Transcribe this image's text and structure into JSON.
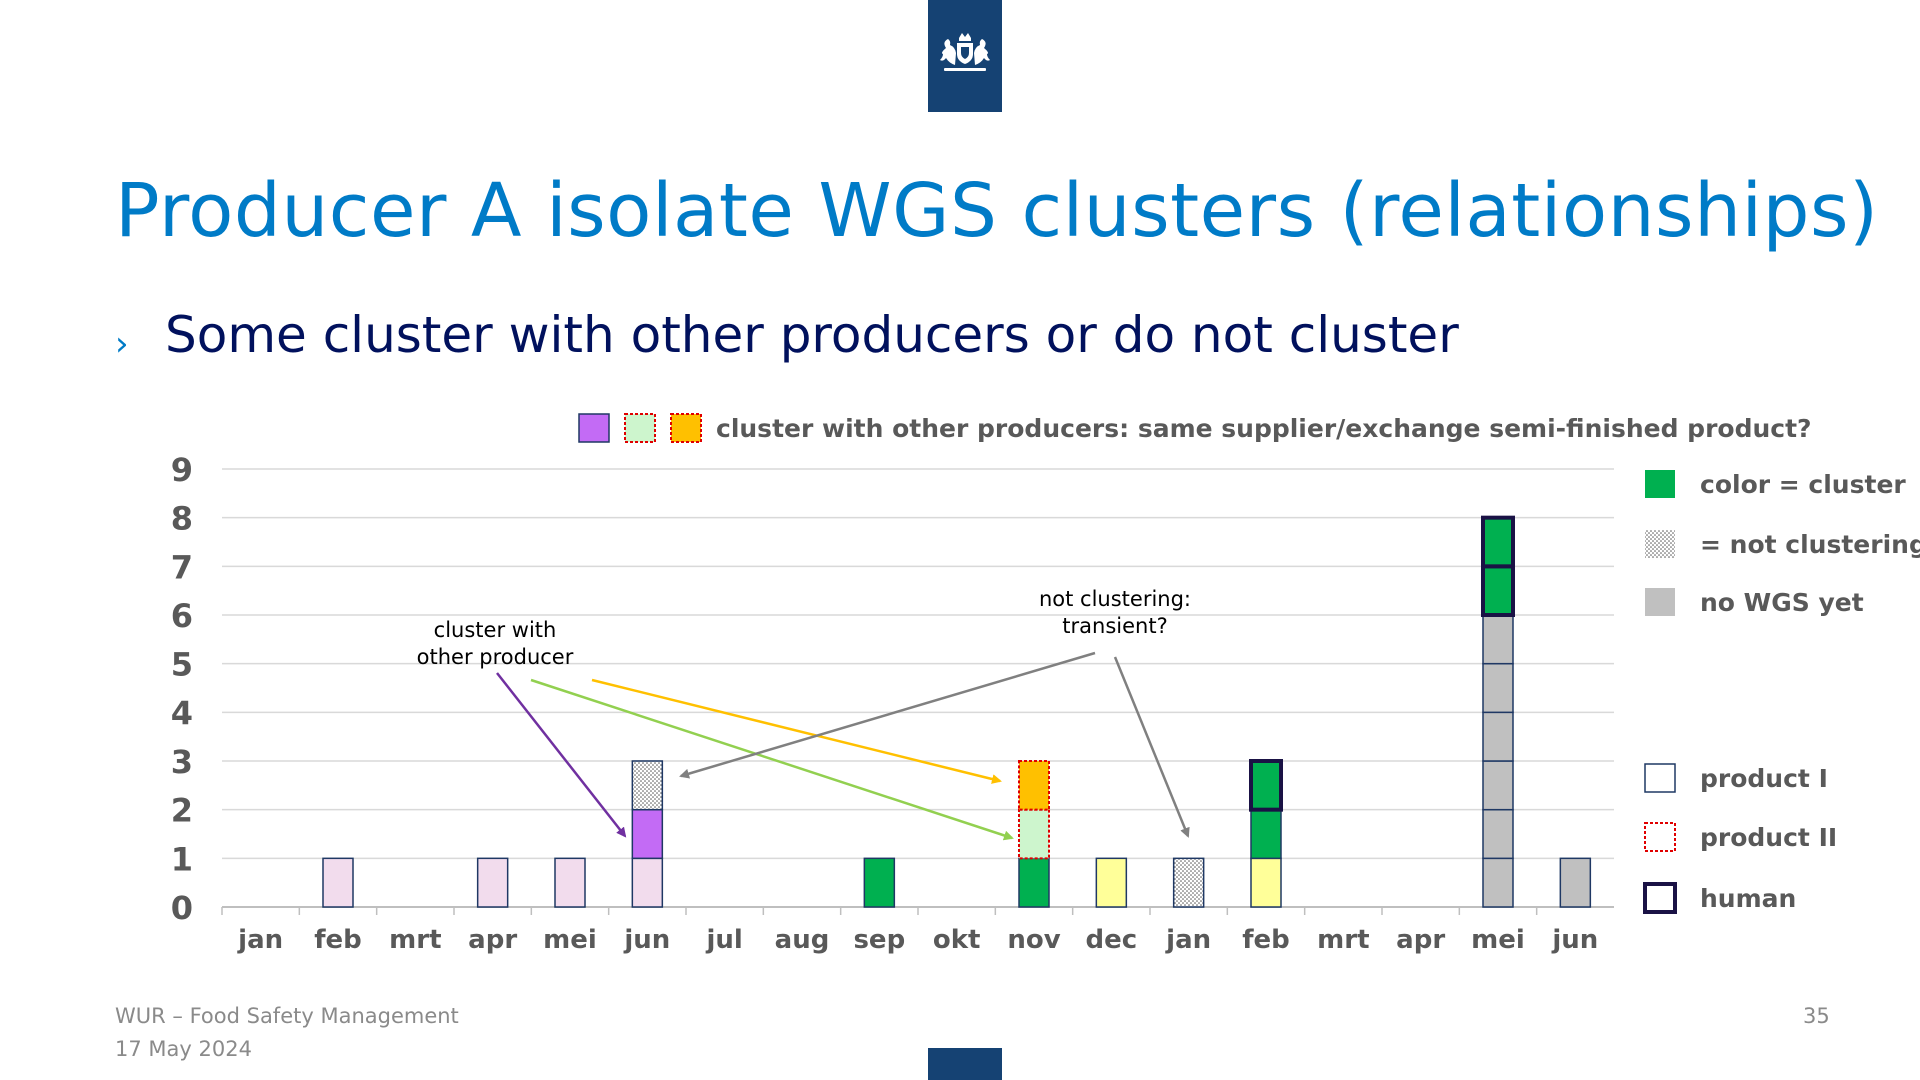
{
  "slide": {
    "title": "Producer A isolate WGS clusters (relationships)",
    "bullet_marker": "›",
    "bullet": "Some cluster with other producers or do not cluster",
    "footer_org": "WUR – Food Safety Management",
    "footer_date": "17 May 2024",
    "page_number": "35",
    "brand_color": "#154273",
    "title_color": "#007bc7",
    "logo_icon": "royal-coat-of-arms-icon"
  },
  "chart_data": {
    "type": "bar",
    "stacked": true,
    "title": "",
    "xlabel": "",
    "ylabel": "",
    "ylim": [
      0,
      9
    ],
    "yticks": [
      "0",
      "1",
      "2",
      "3",
      "4",
      "5",
      "6",
      "7",
      "8",
      "9"
    ],
    "grid": true,
    "categories": [
      "jan",
      "feb",
      "mrt",
      "apr",
      "mei",
      "jun",
      "jul",
      "aug",
      "sep",
      "okt",
      "nov",
      "dec",
      "jan",
      "feb",
      "mrt",
      "apr",
      "mei",
      "jun"
    ],
    "stacks": [
      [],
      [
        {
          "fill": "#f2dced",
          "border": "product-I"
        }
      ],
      [],
      [
        {
          "fill": "#f2dced",
          "border": "product-I"
        }
      ],
      [
        {
          "fill": "#f2dced",
          "border": "product-I"
        }
      ],
      [
        {
          "fill": "#f2dced",
          "border": "product-I"
        },
        {
          "fill": "#c36bf5",
          "border": "product-I"
        },
        {
          "fill": "dots",
          "border": "product-I"
        }
      ],
      [],
      [],
      [
        {
          "fill": "#00b050",
          "border": "product-I"
        }
      ],
      [],
      [
        {
          "fill": "#00b050",
          "border": "product-I"
        },
        {
          "fill": "#cdf5cd",
          "border": "product-II"
        },
        {
          "fill": "#ffc000",
          "border": "product-II"
        }
      ],
      [
        {
          "fill": "#ffff99",
          "border": "product-I"
        }
      ],
      [
        {
          "fill": "dots",
          "border": "product-I"
        }
      ],
      [
        {
          "fill": "#ffff99",
          "border": "product-I"
        },
        {
          "fill": "#00b050",
          "border": "product-I"
        },
        {
          "fill": "#00b050",
          "border": "human"
        }
      ],
      [],
      [],
      [
        {
          "fill": "#c0c0c0",
          "border": "product-I"
        },
        {
          "fill": "#c0c0c0",
          "border": "product-I"
        },
        {
          "fill": "#c0c0c0",
          "border": "product-I"
        },
        {
          "fill": "#c0c0c0",
          "border": "product-I"
        },
        {
          "fill": "#c0c0c0",
          "border": "product-I"
        },
        {
          "fill": "#c0c0c0",
          "border": "product-I"
        },
        {
          "fill": "#00b050",
          "border": "human"
        },
        {
          "fill": "#00b050",
          "border": "human"
        }
      ],
      [
        {
          "fill": "#c0c0c0",
          "border": "product-I"
        }
      ]
    ],
    "top_legend": {
      "swatches": [
        {
          "fill": "#c36bf5",
          "border": "product-I"
        },
        {
          "fill": "#cdf5cd",
          "border": "product-II"
        },
        {
          "fill": "#ffc000",
          "border": "product-II"
        }
      ],
      "label": "cluster with other producers: same supplier/exchange semi-finished product?"
    },
    "legend": [
      {
        "fill": "#00b050",
        "border": "none",
        "label": "color = cluster"
      },
      {
        "fill": "dots",
        "border": "none",
        "label": "= not clustering"
      },
      {
        "fill": "#c0c0c0",
        "border": "none",
        "label": "no WGS yet"
      },
      {
        "fill": "#ffffff",
        "border": "product-I",
        "label": "product I"
      },
      {
        "fill": "#ffffff",
        "border": "product-II",
        "label": "product II"
      },
      {
        "fill": "#ffffff",
        "border": "human",
        "label": "human"
      }
    ],
    "annotations": [
      {
        "lines": [
          "cluster with",
          "other producer"
        ]
      },
      {
        "lines": [
          "not clustering:",
          "transient?"
        ]
      }
    ],
    "colors": {
      "cluster_green": "#00b050",
      "purple": "#c36bf5",
      "light_green": "#cdf5cd",
      "orange": "#ffc000",
      "pink": "#f2dced",
      "yellow": "#ffff99",
      "grey": "#c0c0c0",
      "product_I_border": "#1f3864",
      "product_II_border": "#e00000",
      "human_border": "#1a1245",
      "arrow_purple": "#7030a0",
      "arrow_green": "#92d050",
      "arrow_orange": "#ffc000",
      "arrow_grey": "#808080"
    }
  }
}
